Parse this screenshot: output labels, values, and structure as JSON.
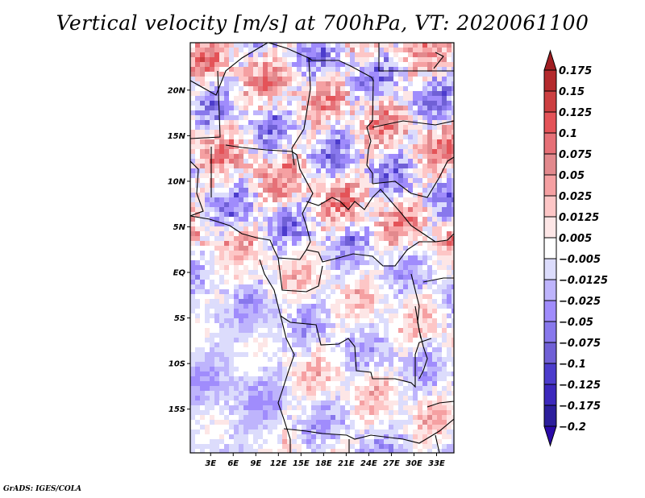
{
  "title": "Vertical velocity [m/s] at 700hPa, VT: 2020061100",
  "footer": "GrADS: IGES/COLA",
  "chart_data": {
    "type": "heatmap",
    "title": "Vertical velocity [m/s] at 700hPa, VT: 2020061100",
    "variable": "Vertical velocity",
    "units": "m/s",
    "level": "700hPa",
    "valid_time": "2020061100",
    "xlabel": "",
    "ylabel": "",
    "x_ticks": [
      "3E",
      "6E",
      "9E",
      "12E",
      "15E",
      "18E",
      "21E",
      "24E",
      "27E",
      "30E",
      "33E"
    ],
    "x_tick_values": [
      3,
      6,
      9,
      12,
      15,
      18,
      21,
      24,
      27,
      30,
      33
    ],
    "y_ticks": [
      "20N",
      "15N",
      "10N",
      "5N",
      "EQ",
      "5S",
      "10S",
      "15S"
    ],
    "y_tick_values": [
      20,
      15,
      10,
      5,
      0,
      -5,
      -10,
      -15
    ],
    "xlim": [
      0.3,
      35.3
    ],
    "ylim": [
      -19.8,
      25.2
    ],
    "grid": false,
    "legend_placement": "right",
    "colorbar": {
      "labels": [
        "0.175",
        "0.15",
        "0.125",
        "0.1",
        "0.075",
        "0.05",
        "0.025",
        "0.0125",
        "0.005",
        "-0.005",
        "-0.0125",
        "-0.025",
        "-0.05",
        "-0.075",
        "-0.1",
        "-0.125",
        "-0.175",
        "-0.2"
      ],
      "colors": [
        "#a01e22",
        "#b42a2d",
        "#cc3f41",
        "#e45358",
        "#e67077",
        "#e2898d",
        "#f5a0a2",
        "#fdc6c6",
        "#fde6e6",
        "#ffffff",
        "#dcdcfc",
        "#beb4fc",
        "#a08cfc",
        "#8878ec",
        "#7060d6",
        "#4c3ccc",
        "#3c28bc",
        "#2c1e9c",
        "#2a0aa8"
      ],
      "extend": "both"
    },
    "description": "Shaded field of 700hPa vertical velocity over Central Africa with country boundaries; mixed positive (red) and negative (blue) values; stronger red in north (Sahel/Sahara), mostly weak blue over southern Atlantic."
  }
}
